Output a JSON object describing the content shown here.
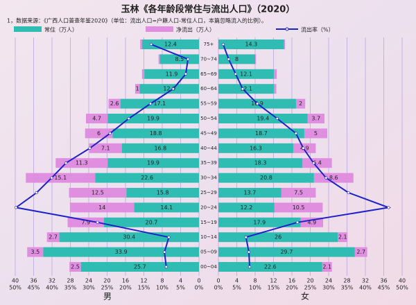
{
  "chart_data": {
    "type": "pyramid",
    "title": "玉林《各年龄段常住与流出人口》（2020）",
    "note": "1，数据来源：《广西人口普查年鉴2020》（单位：流出人口=户籍人口-常住人口，本篇忽略流入的比例）。",
    "categories": [
      "75+",
      "70~74",
      "65~69",
      "60~64",
      "55~59",
      "50~54",
      "45~49",
      "40~44",
      "35~39",
      "30~34",
      "25~29",
      "20~24",
      "15~19",
      "10~14",
      "05~09",
      "00~04"
    ],
    "legend": [
      {
        "name": "常住（万人）",
        "color": "#2fbcb3"
      },
      {
        "name": "净流出（万人）",
        "color": "#df8ee0"
      },
      {
        "name": "流出率（%）",
        "color": "#1c22c8"
      }
    ],
    "sides": [
      {
        "label": "男",
        "resident": [
          12.4,
          8.5,
          11.9,
          12.9,
          17.1,
          19.9,
          18.8,
          16.8,
          19.9,
          22.6,
          15.8,
          14.1,
          20.7,
          30.4,
          33.9,
          25.7
        ],
        "outflow": [
          0.4,
          0.3,
          0.5,
          1.0,
          2.6,
          4.7,
          6.0,
          7.1,
          11.3,
          15.1,
          12.5,
          14.0,
          7.9,
          2.7,
          3.5,
          2.5
        ],
        "rate": [
          13,
          3,
          3.6,
          7,
          13.2,
          19.1,
          24.2,
          29.7,
          36.2,
          40.1,
          44.2,
          49.8,
          27.6,
          8.2,
          9.4,
          8.9
        ]
      },
      {
        "label": "女",
        "resident": [
          14.3,
          8.0,
          12.1,
          12.1,
          16.9,
          19.4,
          18.7,
          16.3,
          18.3,
          20.8,
          13.7,
          12.2,
          17.9,
          26.0,
          29.7,
          22.6
        ],
        "outflow": [
          0.2,
          0.2,
          0.6,
          0.5,
          2.0,
          3.7,
          5.0,
          4.9,
          6.4,
          8.6,
          7.5,
          10.5,
          4.9,
          2.1,
          2.7,
          2.1
        ],
        "rate": [
          1.3,
          2.8,
          4.7,
          6.6,
          10.6,
          16,
          21.1,
          23.1,
          25.9,
          29.3,
          35.4,
          46.3,
          21.5,
          7.5,
          8.3,
          8.5
        ]
      }
    ],
    "xlim": [
      0,
      40
    ],
    "xticks": [
      0,
      4,
      8,
      12,
      16,
      20,
      24,
      28,
      32,
      36,
      40
    ],
    "x2lim": [
      0,
      50
    ],
    "x2ticks": [
      {
        "value": 0,
        "label": "0%"
      },
      {
        "value": 5,
        "label": "5%"
      },
      {
        "value": 10,
        "label": "10%"
      },
      {
        "value": 15,
        "label": "15%"
      },
      {
        "value": 20,
        "label": "20%"
      },
      {
        "value": 25,
        "label": "25%"
      },
      {
        "value": 30,
        "label": "30%"
      },
      {
        "value": 35,
        "label": "35%"
      },
      {
        "value": 40,
        "label": "40%"
      },
      {
        "value": 45,
        "label": "45%"
      },
      {
        "value": 50,
        "label": "50%"
      }
    ],
    "grid": true
  }
}
